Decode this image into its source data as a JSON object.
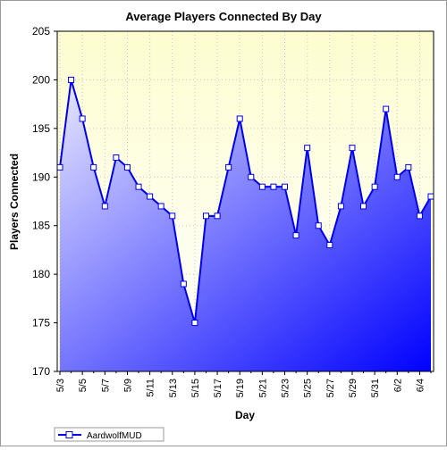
{
  "chart_data": {
    "type": "area",
    "title": "Average Players Connected By Day",
    "xlabel": "Day",
    "ylabel": "Players Connected",
    "ylim": [
      170,
      205
    ],
    "yticks": [
      170,
      175,
      180,
      185,
      190,
      195,
      200,
      205
    ],
    "grid": true,
    "legend_position": "bottom-left",
    "x": [
      "5/3",
      "5/4",
      "5/5",
      "5/6",
      "5/7",
      "5/8",
      "5/9",
      "5/10",
      "5/11",
      "5/12",
      "5/13",
      "5/14",
      "5/15",
      "5/16",
      "5/17",
      "5/18",
      "5/19",
      "5/20",
      "5/21",
      "5/22",
      "5/23",
      "5/24",
      "5/25",
      "5/26",
      "5/27",
      "5/28",
      "5/29",
      "5/30",
      "5/31",
      "6/1",
      "6/2",
      "6/3",
      "6/4",
      "6/5"
    ],
    "xtick_labels": [
      "5/3",
      "5/5",
      "5/7",
      "5/9",
      "5/11",
      "5/13",
      "5/15",
      "5/17",
      "5/19",
      "5/21",
      "5/23",
      "5/25",
      "5/27",
      "5/29",
      "5/31",
      "6/2",
      "6/4"
    ],
    "series": [
      {
        "name": "AardwolfMUD",
        "color": "#0000ee",
        "values": [
          191,
          200,
          196,
          191,
          187,
          192,
          191,
          189,
          188,
          187,
          186,
          179,
          175,
          186,
          186,
          191,
          196,
          190,
          189,
          189,
          189,
          184,
          193,
          185,
          183,
          187,
          193,
          187,
          189,
          197,
          190,
          191,
          186,
          188
        ]
      }
    ],
    "colors": {
      "plot_bg_top": "#fdfdd0",
      "plot_bg_bottom": "#ffffff",
      "area_light": "#e8e8ff",
      "area_dark": "#0000ff",
      "line": "#0000ee",
      "grid": "#c8c8c8"
    }
  }
}
